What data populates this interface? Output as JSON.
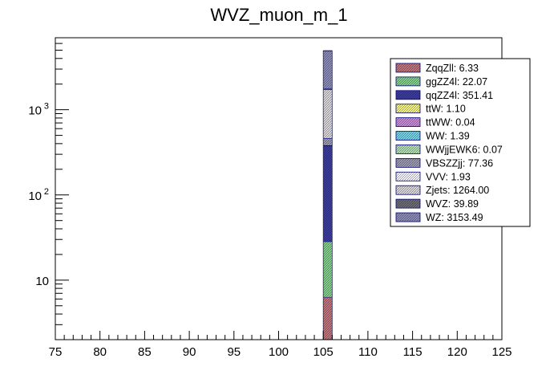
{
  "chart_data": {
    "type": "bar",
    "title": "WVZ_muon_m_1",
    "xlabel": "",
    "ylabel": "",
    "stacked": true,
    "bin": [
      105,
      106
    ],
    "xlim": [
      75,
      125
    ],
    "x_ticks": [
      75,
      80,
      85,
      90,
      95,
      100,
      105,
      110,
      115,
      120,
      125
    ],
    "y_scale": "log",
    "ylim": [
      2,
      7000
    ],
    "y_ticks": [
      {
        "value": 10,
        "label": "10"
      },
      {
        "value": 100,
        "label": "10",
        "exp": "2"
      },
      {
        "value": 1000,
        "label": "10",
        "exp": "3"
      }
    ],
    "grid": false,
    "legend_position": "top-right",
    "series": [
      {
        "name": "ZqqZll",
        "value": 6.33,
        "label": "ZqqZll: 6.33",
        "color": "#c87878"
      },
      {
        "name": "ggZZ4l",
        "value": 22.07,
        "label": "ggZZ4l: 22.07",
        "color": "#88d888"
      },
      {
        "name": "qqZZ4l",
        "value": 351.41,
        "label": "qqZZ4l: 351.41",
        "color": "#3c3ca0"
      },
      {
        "name": "ttW",
        "value": 1.1,
        "label": "ttW: 1.10",
        "color": "#ffff80"
      },
      {
        "name": "ttWW",
        "value": 0.04,
        "label": "ttWW: 0.04",
        "color": "#d090d8"
      },
      {
        "name": "WW",
        "value": 1.39,
        "label": "WW: 1.39",
        "color": "#78dce8"
      },
      {
        "name": "WWjjEWK6",
        "value": 0.07,
        "label": "WWjjEWK6: 0.07",
        "color": "#b8e8b0"
      },
      {
        "name": "VBSZZjj",
        "value": 77.36,
        "label": "VBSZZjj: 77.36",
        "color": "#a0a0b0"
      },
      {
        "name": "VVV",
        "value": 1.93,
        "label": "VVV: 1.93",
        "color": "#ffffff"
      },
      {
        "name": "Zjets",
        "value": 1264.0,
        "label": "Zjets: 1264.00",
        "color": "#e4e0dc"
      },
      {
        "name": "WVZ",
        "value": 39.89,
        "label": "WVZ: 39.89",
        "color": "#707070"
      },
      {
        "name": "WZ",
        "value": 3153.49,
        "label": "WZ: 3153.49",
        "color": "#9090b8"
      }
    ]
  }
}
